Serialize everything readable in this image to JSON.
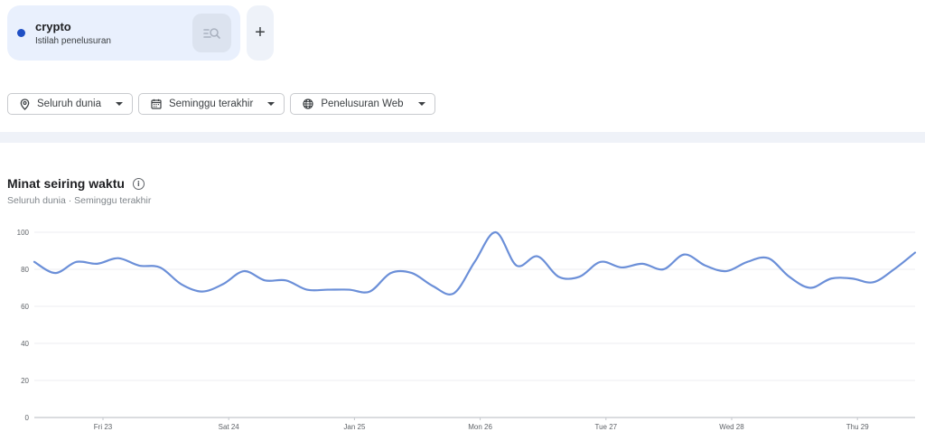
{
  "search_terms": [
    {
      "term": "crypto",
      "subtitle": "Istilah penelusuran",
      "color": "#1f4fc4",
      "search_icon": "search-list-icon"
    }
  ],
  "add_term_label": "+",
  "filters": [
    {
      "icon": "location-pin-icon",
      "label": "Seluruh dunia"
    },
    {
      "icon": "calendar-icon",
      "label": "Seminggu terakhir"
    },
    {
      "icon": "globe-icon",
      "label": "Penelusuran Web"
    }
  ],
  "section": {
    "title": "Minat seiring waktu",
    "info_icon": "info-icon",
    "subtitle": "Seluruh dunia · Seminggu terakhir"
  },
  "chart_data": {
    "type": "line",
    "title": "Minat seiring waktu",
    "subtitle": "Seluruh dunia · Seminggu terakhir",
    "xlabel": "",
    "ylabel": "",
    "ylim": [
      0,
      100
    ],
    "yticks": [
      0,
      20,
      40,
      60,
      80,
      100
    ],
    "grid": true,
    "legend": "none",
    "xtick_labels": [
      "Fri 23",
      "Sat 24",
      "Jan 25",
      "Mon 26",
      "Tue 27",
      "Wed 28",
      "Thu 29"
    ],
    "series": [
      {
        "name": "crypto",
        "color": "#6b8fd8",
        "values": [
          84,
          78,
          84,
          83,
          86,
          82,
          81,
          72,
          68,
          72,
          79,
          74,
          74,
          69,
          69,
          69,
          68,
          78,
          78,
          71,
          67,
          84,
          100,
          82,
          87,
          76,
          76,
          84,
          81,
          83,
          80,
          88,
          82,
          79,
          84,
          86,
          76,
          70,
          75,
          75,
          73,
          80,
          89
        ]
      }
    ]
  }
}
